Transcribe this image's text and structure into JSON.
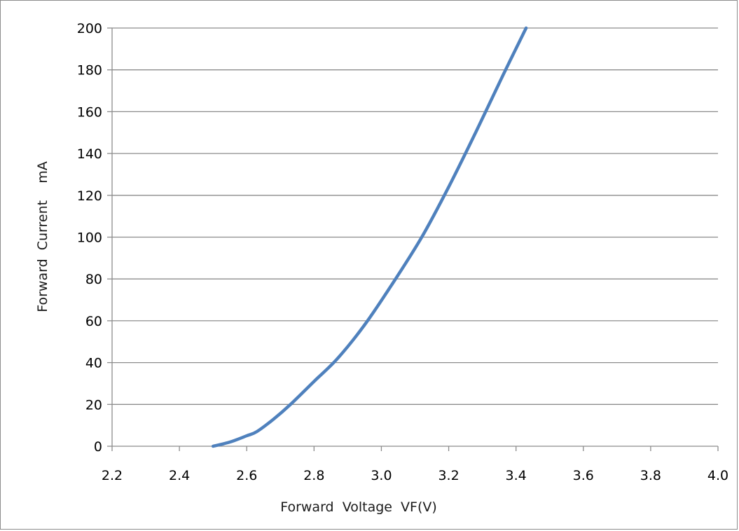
{
  "chart_data": {
    "type": "line",
    "title": "",
    "xlabel": "Forward  Voltage  VF(V)",
    "ylabel": "Forward  Current    mA",
    "xlim": [
      2.2,
      4.0
    ],
    "ylim": [
      0,
      200
    ],
    "xticks": [
      "2.2",
      "2.4",
      "2.6",
      "2.8",
      "3.0",
      "3.2",
      "3.4",
      "3.6",
      "3.8",
      "4.0"
    ],
    "yticks": [
      "0",
      "20",
      "40",
      "60",
      "80",
      "100",
      "120",
      "140",
      "160",
      "180",
      "200"
    ],
    "grid": "horizontal",
    "legend": "none",
    "series": [
      {
        "color": "#4f81bd",
        "x": [
          2.5,
          2.55,
          2.6,
          2.63,
          2.68,
          2.73,
          2.8,
          2.87,
          2.95,
          3.03,
          3.12,
          3.2,
          3.28,
          3.36,
          3.43
        ],
        "y": [
          0,
          2,
          5,
          7,
          13,
          20,
          31,
          42,
          58,
          77,
          100,
          124,
          150,
          177,
          200
        ]
      }
    ]
  },
  "colors": {
    "grid": "#8c8c8c",
    "axis": "#8c8c8c",
    "line": "#4f81bd"
  }
}
